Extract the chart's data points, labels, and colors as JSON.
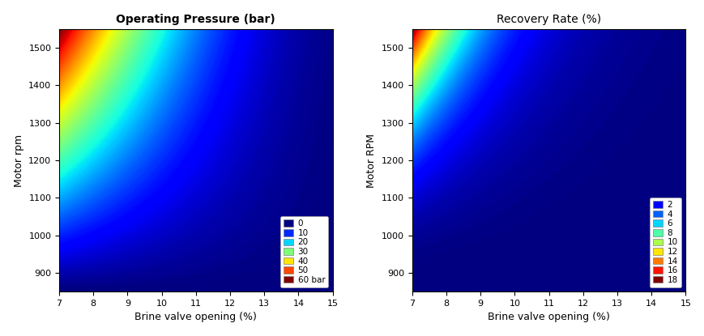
{
  "title1": "Operating Pressure (bar)",
  "title2": "Recovery Rate (%)",
  "xlabel": "Brine valve opening (%)",
  "ylabel1": "Motor rpm",
  "ylabel2": "Motor RPM",
  "x_min": 7,
  "x_max": 15,
  "rpm_min": 850,
  "rpm_max": 1550,
  "pressure_max": 60,
  "recovery_max": 18,
  "pressure_levels": [
    0,
    10,
    20,
    30,
    40,
    50,
    60
  ],
  "pressure_level_labels": [
    "0",
    "10",
    "20",
    "30",
    "40",
    "50",
    "60 bar"
  ],
  "recovery_levels": [
    2,
    4,
    6,
    8,
    10,
    12,
    14,
    16,
    18
  ],
  "recovery_level_labels": [
    "2",
    "4",
    "6",
    "8",
    "10",
    "12",
    "14",
    "16",
    "18"
  ],
  "background_color": "#ffffff",
  "figsize": [
    8.7,
    4.15
  ],
  "dpi": 100
}
